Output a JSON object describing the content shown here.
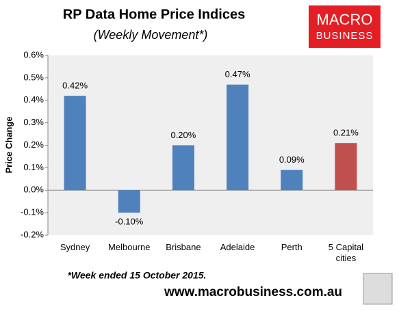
{
  "chart_data": {
    "type": "bar",
    "title": "RP Data Home Price Indices",
    "subtitle": "(Weekly Movement*)",
    "y_label": "Price Change",
    "categories": [
      "Sydney",
      "Melbourne",
      "Brisbane",
      "Adelaide",
      "Perth",
      "5 Capital cities"
    ],
    "values": [
      0.42,
      -0.1,
      0.2,
      0.47,
      0.09,
      0.21
    ],
    "value_labels": [
      "0.42%",
      "-0.10%",
      "0.20%",
      "0.47%",
      "0.09%",
      "0.21%"
    ],
    "colors": [
      "#4f81bd",
      "#4f81bd",
      "#4f81bd",
      "#4f81bd",
      "#4f81bd",
      "#c0504d"
    ],
    "ylim": [
      -0.2,
      0.6
    ],
    "yticks": [
      {
        "value": -0.2,
        "label": "-0.2%"
      },
      {
        "value": -0.1,
        "label": "-0.1%"
      },
      {
        "value": 0,
        "label": "0.0%"
      },
      {
        "value": 0.1,
        "label": "0.1%"
      },
      {
        "value": 0.2,
        "label": "0.2%"
      },
      {
        "value": 0.3,
        "label": "0.3%"
      },
      {
        "value": 0.4,
        "label": "0.4%"
      },
      {
        "value": 0.5,
        "label": "0.5%"
      },
      {
        "value": 0.6,
        "label": "0.6%"
      }
    ],
    "grid": false
  },
  "footnote": "*Week ended 15 October 2015.",
  "website": "www.macrobusiness.com.au",
  "logo": {
    "line1": "MACRO",
    "line2": "BUSINESS"
  }
}
